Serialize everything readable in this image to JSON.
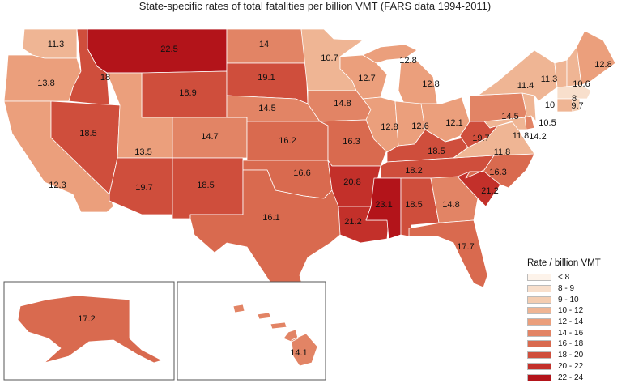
{
  "title": "State-specific rates of total fatalities per billion VMT (FARS data 1994-2011)",
  "legend": {
    "title": "Rate / billion VMT",
    "items": [
      {
        "label": "< 8",
        "color": "#fdf3ea"
      },
      {
        "label": "8 - 9",
        "color": "#f8dfcc"
      },
      {
        "label": "9 - 10",
        "color": "#f4cdb1"
      },
      {
        "label": "10 - 12",
        "color": "#efb594"
      },
      {
        "label": "12 - 14",
        "color": "#eb9f7c"
      },
      {
        "label": "14 - 16",
        "color": "#e28465"
      },
      {
        "label": "16 - 18",
        "color": "#d96a4f"
      },
      {
        "label": "18 - 20",
        "color": "#cf4e3c"
      },
      {
        "label": "20 - 22",
        "color": "#c3302a"
      },
      {
        "label": "22 - 24",
        "color": "#b3141a"
      }
    ]
  },
  "states": [
    {
      "id": "WA",
      "value": 11.3,
      "label": "11.3"
    },
    {
      "id": "OR",
      "value": 13.8,
      "label": "13.8"
    },
    {
      "id": "CA",
      "value": 12.3,
      "label": "12.3"
    },
    {
      "id": "ID",
      "value": 18,
      "label": "18"
    },
    {
      "id": "NV",
      "value": 18.5,
      "label": "18.5"
    },
    {
      "id": "MT",
      "value": 22.5,
      "label": "22.5"
    },
    {
      "id": "WY",
      "value": 18.9,
      "label": "18.9"
    },
    {
      "id": "UT",
      "value": 13.5,
      "label": "13.5"
    },
    {
      "id": "AZ",
      "value": 19.7,
      "label": "19.7"
    },
    {
      "id": "CO",
      "value": 14.7,
      "label": "14.7"
    },
    {
      "id": "NM",
      "value": 18.5,
      "label": "18.5"
    },
    {
      "id": "ND",
      "value": 14,
      "label": "14"
    },
    {
      "id": "SD",
      "value": 19.1,
      "label": "19.1"
    },
    {
      "id": "NE",
      "value": 14.5,
      "label": "14.5"
    },
    {
      "id": "KS",
      "value": 16.2,
      "label": "16.2"
    },
    {
      "id": "OK",
      "value": 16.6,
      "label": "16.6"
    },
    {
      "id": "TX",
      "value": 16.1,
      "label": "16.1"
    },
    {
      "id": "MN",
      "value": 10.7,
      "label": "10.7"
    },
    {
      "id": "IA",
      "value": 14.8,
      "label": "14.8"
    },
    {
      "id": "MO",
      "value": 16.3,
      "label": "16.3"
    },
    {
      "id": "AR",
      "value": 20.8,
      "label": "20.8"
    },
    {
      "id": "LA",
      "value": 21.2,
      "label": "21.2"
    },
    {
      "id": "WI",
      "value": 12.7,
      "label": "12.7"
    },
    {
      "id": "IL",
      "value": 12.8,
      "label": "12.8"
    },
    {
      "id": "MI",
      "value": 12.8,
      "label": "12.8"
    },
    {
      "id": "MI-UP",
      "value": 12.8,
      "label": "12.8"
    },
    {
      "id": "IN",
      "value": 12.6,
      "label": "12.6"
    },
    {
      "id": "OH",
      "value": 12.1,
      "label": "12.1"
    },
    {
      "id": "KY",
      "value": 18.5,
      "label": "18.5"
    },
    {
      "id": "TN",
      "value": 18.2,
      "label": "18.2"
    },
    {
      "id": "MS",
      "value": 23.1,
      "label": "23.1"
    },
    {
      "id": "AL",
      "value": 18.5,
      "label": "18.5"
    },
    {
      "id": "GA",
      "value": 14.8,
      "label": "14.8"
    },
    {
      "id": "FL",
      "value": 17.7,
      "label": "17.7"
    },
    {
      "id": "SC",
      "value": 21.2,
      "label": "21.2"
    },
    {
      "id": "NC",
      "value": 16.3,
      "label": "16.3"
    },
    {
      "id": "VA",
      "value": 11.8,
      "label": "11.8"
    },
    {
      "id": "WV",
      "value": 19.7,
      "label": "19.7"
    },
    {
      "id": "MD",
      "value": 11.8,
      "label": "11.8"
    },
    {
      "id": "DE",
      "value": 14.2,
      "label": "14.2"
    },
    {
      "id": "PA",
      "value": 14.5,
      "label": "14.5"
    },
    {
      "id": "NJ",
      "value": 10.5,
      "label": "10.5"
    },
    {
      "id": "NY",
      "value": 11.4,
      "label": "11.4"
    },
    {
      "id": "CT",
      "value": 10,
      "label": "10"
    },
    {
      "id": "RI",
      "value": 9.7,
      "label": "9.7"
    },
    {
      "id": "MA",
      "value": 8,
      "label": "8"
    },
    {
      "id": "VT",
      "value": 11.3,
      "label": "11.3"
    },
    {
      "id": "NH",
      "value": 10.6,
      "label": "10.6"
    },
    {
      "id": "ME",
      "value": 12.8,
      "label": "12.8"
    },
    {
      "id": "AK",
      "value": 17.2,
      "label": "17.2"
    },
    {
      "id": "HI",
      "value": 14.1,
      "label": "14.1"
    }
  ]
}
